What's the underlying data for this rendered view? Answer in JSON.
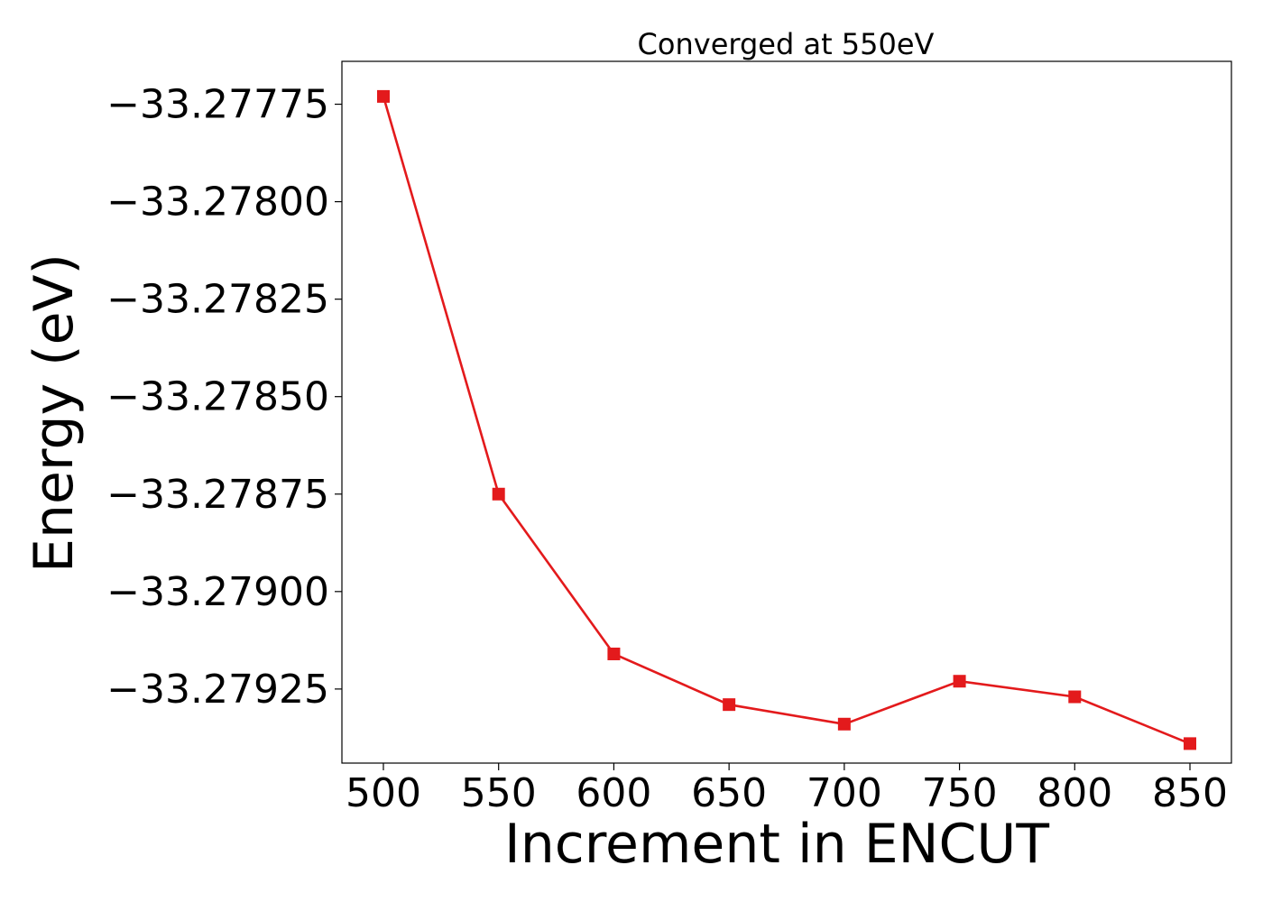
{
  "chart_data": {
    "type": "line",
    "title": "Converged at 550eV",
    "xlabel": "Increment in ENCUT",
    "ylabel": "Energy (eV)",
    "x": [
      500,
      550,
      600,
      650,
      700,
      750,
      800,
      850
    ],
    "series": [
      {
        "values": [
          -33.27773,
          -33.27875,
          -33.27916,
          -33.27929,
          -33.27934,
          -33.27923,
          -33.27927,
          -33.27939
        ],
        "color": "#e31a1c",
        "marker": "square"
      }
    ],
    "xlim": [
      482,
      868
    ],
    "ylim": [
      -33.27944,
      -33.27764
    ],
    "xticks": [
      500,
      550,
      600,
      650,
      700,
      750,
      800,
      850
    ],
    "xtick_labels": [
      "500",
      "550",
      "600",
      "650",
      "700",
      "750",
      "800",
      "850"
    ],
    "yticks": [
      -33.27775,
      -33.278,
      -33.27825,
      -33.2785,
      -33.27875,
      -33.279,
      -33.27925
    ],
    "ytick_labels": [
      "−33.27775",
      "−33.27800",
      "−33.27825",
      "−33.27850",
      "−33.27875",
      "−33.27900",
      "−33.27925"
    ],
    "grid": false,
    "legend": "none"
  }
}
